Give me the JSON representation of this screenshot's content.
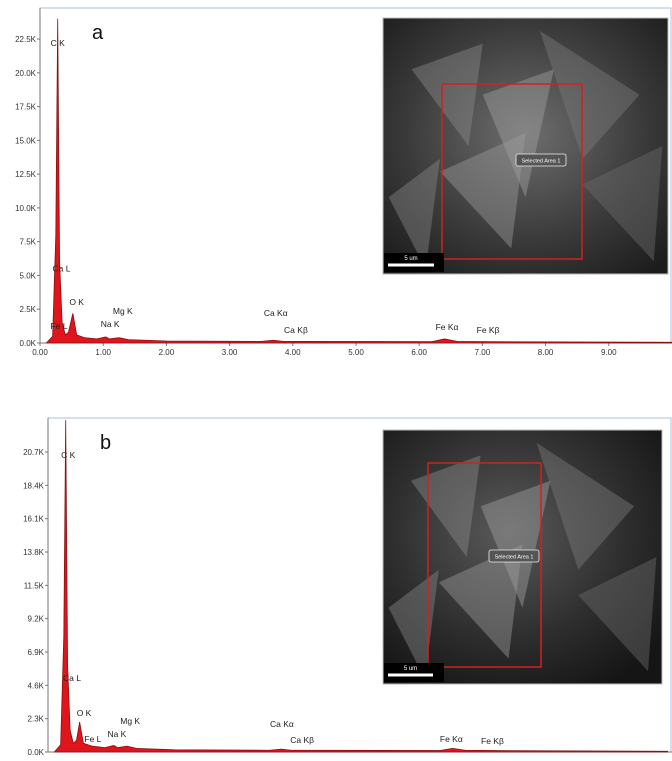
{
  "chart_data": [
    {
      "type": "area",
      "panel": "a",
      "color": "#e0151c",
      "line_color": "#8a1010",
      "x": [
        0.1,
        0.2,
        0.25,
        0.28,
        0.31,
        0.35,
        0.4,
        0.45,
        0.52,
        0.58,
        0.7,
        0.9,
        1.04,
        1.1,
        1.25,
        1.4,
        2.0,
        3.5,
        3.69,
        3.85,
        4.0,
        6.2,
        6.4,
        6.6,
        7.06,
        10.0
      ],
      "values": [
        0,
        500,
        8000,
        24000,
        6000,
        1500,
        600,
        800,
        2200,
        600,
        400,
        300,
        450,
        300,
        400,
        250,
        150,
        120,
        200,
        120,
        120,
        100,
        300,
        120,
        100,
        50
      ],
      "xlim": [
        0,
        10
      ],
      "ylim": [
        0,
        24800
      ],
      "xticks": [
        {
          "value": 0,
          "label": "0.00"
        },
        {
          "value": 1,
          "label": "1.00"
        },
        {
          "value": 2,
          "label": "2.00"
        },
        {
          "value": 3,
          "label": "3.00"
        },
        {
          "value": 4,
          "label": "4.00"
        },
        {
          "value": 5,
          "label": "5.00"
        },
        {
          "value": 6,
          "label": "6.00"
        },
        {
          "value": 7,
          "label": "7.00"
        },
        {
          "value": 8,
          "label": "8.00"
        },
        {
          "value": 9,
          "label": "9.00"
        }
      ],
      "yticks": [
        {
          "value": 0,
          "label": "0.0K"
        },
        {
          "value": 2500,
          "label": "2.5K"
        },
        {
          "value": 5000,
          "label": "5.0K"
        },
        {
          "value": 7500,
          "label": "7.5K"
        },
        {
          "value": 10000,
          "label": "10.0K"
        },
        {
          "value": 12500,
          "label": "12.5K"
        },
        {
          "value": 15000,
          "label": "15.0K"
        },
        {
          "value": 17500,
          "label": "17.5K"
        },
        {
          "value": 20000,
          "label": "20.0K"
        },
        {
          "value": 22500,
          "label": "22.5K"
        }
      ],
      "annotations": [
        {
          "text": "C K",
          "x": 0.28,
          "y": 21980
        },
        {
          "text": "Ca L",
          "x": 0.34,
          "y": 5300
        },
        {
          "text": "O K",
          "x": 0.58,
          "y": 2800
        },
        {
          "text": "Fe L",
          "x": 0.3,
          "y": 1030
        },
        {
          "text": "Na K",
          "x": 1.11,
          "y": 1180
        },
        {
          "text": "Mg K",
          "x": 1.31,
          "y": 2140
        },
        {
          "text": "Ca Kα",
          "x": 3.73,
          "y": 1990
        },
        {
          "text": "Ca Kβ",
          "x": 4.05,
          "y": 740
        },
        {
          "text": "Fe Kα",
          "x": 6.44,
          "y": 960
        },
        {
          "text": "Fe Kβ",
          "x": 7.09,
          "y": 740
        }
      ],
      "inset": {
        "label": "Selected Area 1",
        "scale": "5 um"
      }
    },
    {
      "type": "area",
      "panel": "b",
      "color": "#e0151c",
      "line_color": "#8a1010",
      "x": [
        0.1,
        0.2,
        0.25,
        0.28,
        0.31,
        0.35,
        0.4,
        0.45,
        0.5,
        0.56,
        0.7,
        0.9,
        1.04,
        1.1,
        1.25,
        1.4,
        2.0,
        3.5,
        3.69,
        3.85,
        4.0,
        6.2,
        6.4,
        6.6,
        7.06,
        9.8
      ],
      "values": [
        0,
        500,
        8000,
        22900,
        6000,
        1500,
        600,
        800,
        2070,
        600,
        400,
        300,
        450,
        300,
        400,
        250,
        150,
        120,
        200,
        120,
        120,
        100,
        250,
        120,
        100,
        50
      ],
      "xlim": [
        0,
        9.87
      ],
      "ylim": [
        0,
        23050
      ],
      "yticks": [
        {
          "value": 0,
          "label": "0.0K"
        },
        {
          "value": 2300,
          "label": "2.3K"
        },
        {
          "value": 4600,
          "label": "4.6K"
        },
        {
          "value": 6900,
          "label": "6.9K"
        },
        {
          "value": 9200,
          "label": "9.2K"
        },
        {
          "value": 11500,
          "label": "11.5K"
        },
        {
          "value": 13800,
          "label": "13.8K"
        },
        {
          "value": 16100,
          "label": "16.1K"
        },
        {
          "value": 18400,
          "label": "18.4K"
        },
        {
          "value": 20700,
          "label": "20.7K"
        }
      ],
      "annotations": [
        {
          "text": "C K",
          "x": 0.32,
          "y": 20290
        },
        {
          "text": "Ca L",
          "x": 0.38,
          "y": 4900
        },
        {
          "text": "O K",
          "x": 0.57,
          "y": 2480
        },
        {
          "text": "Fe L",
          "x": 0.71,
          "y": 690
        },
        {
          "text": "Na K",
          "x": 1.09,
          "y": 1035
        },
        {
          "text": "Mg K",
          "x": 1.3,
          "y": 1930
        },
        {
          "text": "Ca Kα",
          "x": 3.7,
          "y": 1725
        },
        {
          "text": "Ca Kβ",
          "x": 4.02,
          "y": 620
        },
        {
          "text": "Fe Kα",
          "x": 6.38,
          "y": 690
        },
        {
          "text": "Fe Kβ",
          "x": 7.03,
          "y": 550
        }
      ],
      "inset": {
        "label": "Selected Area 1",
        "scale": "5 um"
      }
    }
  ]
}
